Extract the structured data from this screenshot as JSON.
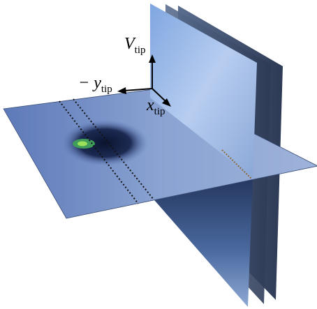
{
  "axes": [
    {
      "symbol": "V",
      "subscript": "tip"
    },
    {
      "symbol": "− y",
      "subscript": "tip"
    },
    {
      "symbol": "x",
      "subscript": "tip"
    }
  ]
}
